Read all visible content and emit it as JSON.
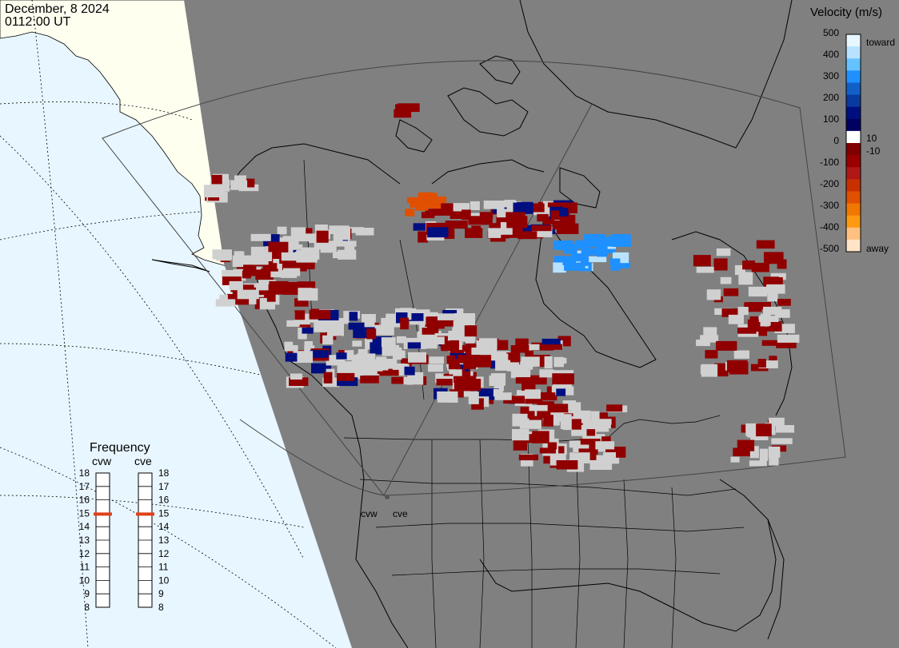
{
  "header": {
    "date": "December, 8 2024",
    "time": "0112:00 UT"
  },
  "legend": {
    "title": "Velocity (m/s)",
    "toward_label": "toward",
    "away_label": "away",
    "ticks": [
      "500",
      "400",
      "300",
      "200",
      "100",
      "0",
      "-100",
      "-200",
      "-300",
      "-400",
      "-500"
    ],
    "inner_ticks": [
      "10",
      "-10"
    ],
    "colors": [
      "#e8f6ff",
      "#b8e2ff",
      "#66c2ff",
      "#1e90ff",
      "#1060c8",
      "#0a3aa0",
      "#000f80",
      "#000060",
      "#ffffff",
      "#800000",
      "#9a0000",
      "#b01818",
      "#c83000",
      "#e05000",
      "#f07800",
      "#ff9a10",
      "#ffc080",
      "#ffe4c8"
    ]
  },
  "frequency": {
    "title": "Frequency",
    "radars": [
      {
        "name": "cvw",
        "value": 15
      },
      {
        "name": "cve",
        "value": 15
      }
    ],
    "scale_labels": [
      "18",
      "17",
      "16",
      "15",
      "14",
      "13",
      "12",
      "11",
      "10",
      "9",
      "8"
    ],
    "marker_color": "#e0401a"
  },
  "map": {
    "stations": [
      {
        "label": "cvw"
      },
      {
        "label": "cve"
      }
    ],
    "colors": {
      "night": "#808080",
      "land_day": "#fffff0",
      "ocean_day": "#e8f6ff",
      "ground_scatter": "#d0d0d0",
      "coast": "#000000"
    }
  }
}
